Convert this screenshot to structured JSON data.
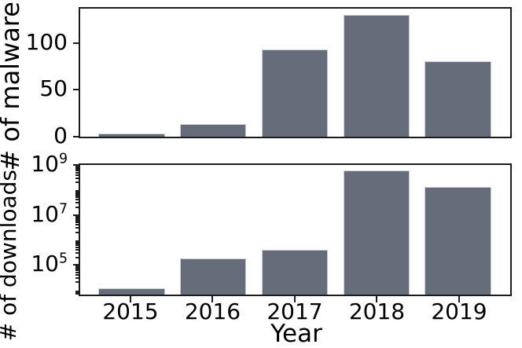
{
  "figure": {
    "xlabel": "Year",
    "background_color": "#ffffff",
    "bar_color": "#666C7A",
    "bar_edge_color": "#C9CDD5",
    "axis_color": "#1c1c1c",
    "text_color": "#000000"
  },
  "chart_data": [
    {
      "type": "bar",
      "title": "",
      "categories": [
        "2015",
        "2016",
        "2017",
        "2018",
        "2019"
      ],
      "values": [
        3,
        13,
        93,
        130,
        80
      ],
      "xlabel": "",
      "ylabel": "# of malware",
      "yscale": "linear",
      "ylim": [
        0,
        136.5
      ],
      "yticks": [
        0,
        50,
        100
      ],
      "ytick_labels": [
        {
          "text": "0"
        },
        {
          "text": "50"
        },
        {
          "text": "100"
        }
      ],
      "grid": false,
      "legend": null,
      "x_tick_labels_visible": false
    },
    {
      "type": "bar",
      "title": "",
      "categories": [
        "2015",
        "2016",
        "2017",
        "2018",
        "2019"
      ],
      "values": [
        12000,
        180000,
        400000,
        600000000,
        135000000
      ],
      "xlabel": "Year",
      "ylabel": "# of downloads",
      "yscale": "log",
      "ylim": [
        6500,
        1000000000
      ],
      "yticks": [
        100000,
        10000000,
        1000000000
      ],
      "ytick_labels": [
        {
          "base": "10",
          "exp": "5"
        },
        {
          "base": "10",
          "exp": "7"
        },
        {
          "base": "10",
          "exp": "9"
        }
      ],
      "grid": false,
      "legend": null,
      "x_tick_labels_visible": true
    }
  ]
}
